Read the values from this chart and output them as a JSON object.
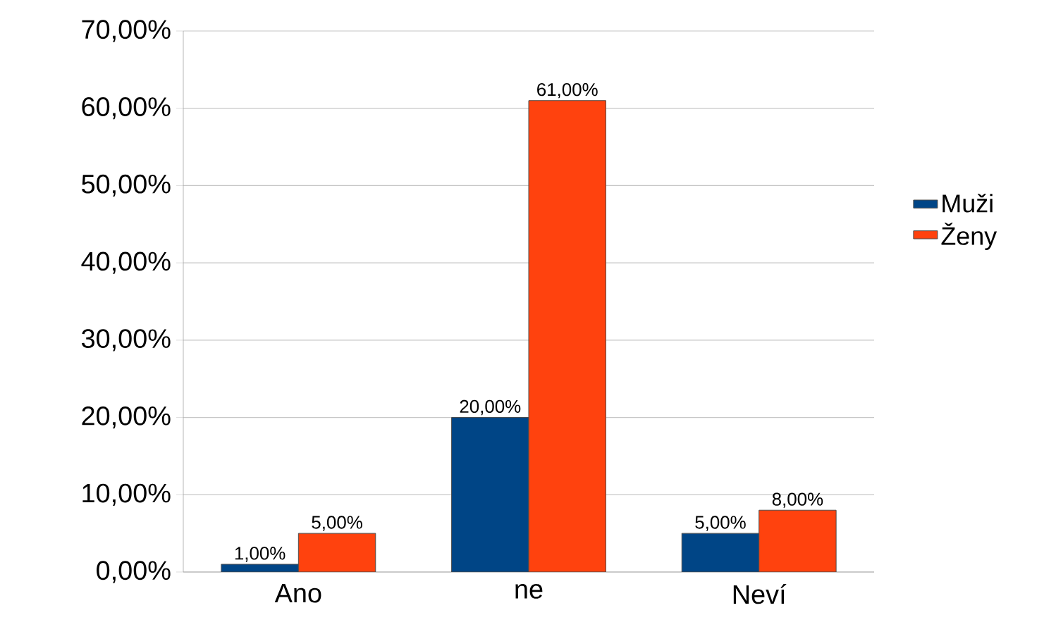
{
  "chart_data": {
    "type": "bar",
    "categories": [
      "Ano",
      "ne",
      "Neví"
    ],
    "series": [
      {
        "name": "Muži",
        "color": "#004586",
        "values": [
          1,
          20,
          5
        ],
        "value_labels": [
          "1,00%",
          "20,00%",
          "5,00%"
        ]
      },
      {
        "name": "Ženy",
        "color": "#ff420e",
        "values": [
          5,
          61,
          8
        ],
        "value_labels": [
          "5,00%",
          "61,00%",
          "8,00%"
        ]
      }
    ],
    "ylim": [
      0,
      70
    ],
    "yticks": [
      {
        "value": 0,
        "label": "0,00%"
      },
      {
        "value": 10,
        "label": "10,00%"
      },
      {
        "value": 20,
        "label": "20,00%"
      },
      {
        "value": 30,
        "label": "30,00%"
      },
      {
        "value": 40,
        "label": "40,00%"
      },
      {
        "value": 50,
        "label": "50,00%"
      },
      {
        "value": 60,
        "label": "60,00%"
      },
      {
        "value": 70,
        "label": "70,00%"
      }
    ],
    "grid": "y",
    "legend": "right"
  }
}
